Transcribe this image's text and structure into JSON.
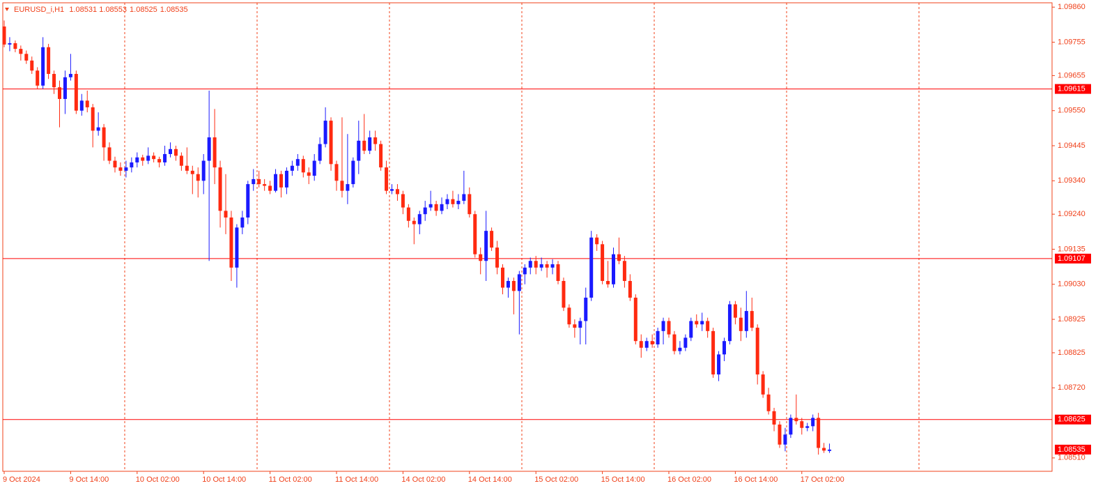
{
  "chart_data": {
    "type": "candlestick",
    "title": "EURUSD_i,H1",
    "up_color": "#1a1aff",
    "down_color": "#ff2a10",
    "axis_color": "#f0401a",
    "ylim": [
      1.0847,
      1.09873
    ],
    "yticks": [
      {
        "value": 1.0986,
        "label": "1.09860"
      },
      1.09755,
      1.09655,
      {
        "value": 1.0955,
        "label": "1.09550"
      },
      1.09445,
      {
        "value": 1.0934,
        "label": "1.09340"
      },
      {
        "value": 1.0924,
        "label": "1.09240"
      },
      1.09135,
      {
        "value": 1.0903,
        "label": "1.09030"
      },
      1.08925,
      1.08825,
      {
        "value": 1.0872,
        "label": "1.08720"
      },
      {
        "value": 1.0851,
        "label": "1.08510"
      }
    ],
    "hlines": [
      1.09615,
      1.09107,
      1.08625
    ],
    "categories": [
      "9 Oct 2024",
      null,
      null,
      null,
      null,
      null,
      null,
      null,
      null,
      null,
      null,
      null,
      "9 Oct 14:00",
      null,
      null,
      null,
      null,
      null,
      null,
      null,
      null,
      null,
      null,
      null,
      "10 Oct 02:00",
      null,
      null,
      null,
      null,
      null,
      null,
      null,
      null,
      null,
      null,
      null,
      "10 Oct 14:00",
      null,
      null,
      null,
      null,
      null,
      null,
      null,
      null,
      null,
      null,
      null,
      "11 Oct 02:00",
      null,
      null,
      null,
      null,
      null,
      null,
      null,
      null,
      null,
      null,
      null,
      "11 Oct 14:00",
      null,
      null,
      null,
      null,
      null,
      null,
      null,
      null,
      null,
      null,
      null,
      "14 Oct 02:00",
      null,
      null,
      null,
      null,
      null,
      null,
      null,
      null,
      null,
      null,
      null,
      "14 Oct 14:00",
      null,
      null,
      null,
      null,
      null,
      null,
      null,
      null,
      null,
      null,
      null,
      "15 Oct 02:00",
      null,
      null,
      null,
      null,
      null,
      null,
      null,
      null,
      null,
      null,
      null,
      "15 Oct 14:00",
      null,
      null,
      null,
      null,
      null,
      null,
      null,
      null,
      null,
      null,
      null,
      "16 Oct 02:00",
      null,
      null,
      null,
      null,
      null,
      null,
      null,
      null,
      null,
      null,
      null,
      "16 Oct 14:00",
      null,
      null,
      null,
      null,
      null,
      null,
      null,
      null,
      null,
      null,
      null,
      "17 Oct 02:00",
      null,
      null,
      null,
      null,
      null
    ],
    "ohlc": [
      [
        1.09802,
        1.0982,
        1.0974,
        1.09748
      ],
      [
        1.09748,
        1.0977,
        1.09728,
        1.09752
      ],
      [
        1.09752,
        1.0976,
        1.09725,
        1.09735
      ],
      [
        1.09735,
        1.09745,
        1.097,
        1.0972
      ],
      [
        1.0972,
        1.0973,
        1.0969,
        1.097
      ],
      [
        1.097,
        1.09712,
        1.0966,
        1.0967
      ],
      [
        1.0967,
        1.0968,
        1.09615,
        1.09625
      ],
      [
        1.09625,
        1.0977,
        1.09615,
        1.0974
      ],
      [
        1.0974,
        1.0975,
        1.09645,
        1.0966
      ],
      [
        1.0966,
        1.0967,
        1.096,
        1.0962
      ],
      [
        1.0962,
        1.0964,
        1.095,
        1.09585
      ],
      [
        1.09585,
        1.0967,
        1.0954,
        1.0965
      ],
      [
        1.0965,
        1.0972,
        1.0964,
        1.0966
      ],
      [
        1.0966,
        1.0967,
        1.0954,
        1.0955
      ],
      [
        1.0955,
        1.096,
        1.09535,
        1.0958
      ],
      [
        1.0958,
        1.0961,
        1.09545,
        1.0956
      ],
      [
        1.0956,
        1.0957,
        1.0944,
        1.0949
      ],
      [
        1.0949,
        1.09545,
        1.09475,
        1.095
      ],
      [
        1.095,
        1.0951,
        1.094,
        1.0944
      ],
      [
        1.0944,
        1.09455,
        1.0939,
        1.094
      ],
      [
        1.094,
        1.09412,
        1.09365,
        1.0938
      ],
      [
        1.0938,
        1.09395,
        1.09355,
        1.0937
      ],
      [
        1.0937,
        1.094,
        1.0935,
        1.0938
      ],
      [
        1.0938,
        1.0941,
        1.09365,
        1.09395
      ],
      [
        1.09395,
        1.09425,
        1.0938,
        1.0941
      ],
      [
        1.0941,
        1.09418,
        1.09385,
        1.094
      ],
      [
        1.094,
        1.0944,
        1.0939,
        1.09415
      ],
      [
        1.09415,
        1.09425,
        1.09395,
        1.09405
      ],
      [
        1.09405,
        1.09412,
        1.0938,
        1.09395
      ],
      [
        1.09395,
        1.09445,
        1.09385,
        1.0942
      ],
      [
        1.0942,
        1.09455,
        1.0941,
        1.09435
      ],
      [
        1.09435,
        1.09445,
        1.094,
        1.09415
      ],
      [
        1.09415,
        1.09425,
        1.0937,
        1.09385
      ],
      [
        1.09385,
        1.0944,
        1.0936,
        1.0937
      ],
      [
        1.0937,
        1.09385,
        1.093,
        1.0936
      ],
      [
        1.0936,
        1.0938,
        1.0929,
        1.0934
      ],
      [
        1.0934,
        1.0942,
        1.093,
        1.094
      ],
      [
        1.094,
        1.0961,
        1.091,
        1.0947
      ],
      [
        1.0947,
        1.09555,
        1.0933,
        1.0938
      ],
      [
        1.0938,
        1.094,
        1.092,
        1.0925
      ],
      [
        1.0925,
        1.0936,
        1.0918,
        1.0923
      ],
      [
        1.0923,
        1.0925,
        1.0904,
        1.0908
      ],
      [
        1.0908,
        1.0921,
        1.0902,
        1.092
      ],
      [
        1.092,
        1.0925,
        1.0918,
        1.0923
      ],
      [
        1.0923,
        1.0934,
        1.0921,
        1.0933
      ],
      [
        1.0933,
        1.09375,
        1.0931,
        1.09345
      ],
      [
        1.09345,
        1.0937,
        1.0932,
        1.0933
      ],
      [
        1.0933,
        1.09345,
        1.0931,
        1.09325
      ],
      [
        1.09325,
        1.0934,
        1.093,
        1.0931
      ],
      [
        1.0931,
        1.09375,
        1.09305,
        1.0936
      ],
      [
        1.0936,
        1.0937,
        1.0929,
        1.0932
      ],
      [
        1.0932,
        1.0938,
        1.093,
        1.0937
      ],
      [
        1.0937,
        1.094,
        1.09355,
        1.09385
      ],
      [
        1.09385,
        1.0942,
        1.0937,
        1.09405
      ],
      [
        1.09405,
        1.09415,
        1.0935,
        1.09365
      ],
      [
        1.09365,
        1.0938,
        1.0933,
        1.09355
      ],
      [
        1.09355,
        1.0942,
        1.0934,
        1.094
      ],
      [
        1.094,
        1.0947,
        1.0939,
        1.0945
      ],
      [
        1.0945,
        1.0956,
        1.0944,
        1.0952
      ],
      [
        1.0952,
        1.0953,
        1.0937,
        1.0939
      ],
      [
        1.0939,
        1.094,
        1.0931,
        1.0934
      ],
      [
        1.0934,
        1.0953,
        1.0929,
        1.0931
      ],
      [
        1.0931,
        1.0948,
        1.0927,
        1.0933
      ],
      [
        1.0933,
        1.0941,
        1.0932,
        1.094
      ],
      [
        1.094,
        1.0952,
        1.0936,
        1.0946
      ],
      [
        1.0946,
        1.0954,
        1.0942,
        1.0943
      ],
      [
        1.0943,
        1.0949,
        1.0942,
        1.0947
      ],
      [
        1.0947,
        1.0949,
        1.0943,
        1.0945
      ],
      [
        1.0945,
        1.0946,
        1.0937,
        1.0938
      ],
      [
        1.0938,
        1.094,
        1.093,
        1.0931
      ],
      [
        1.0931,
        1.0933,
        1.093,
        1.09315
      ],
      [
        1.09315,
        1.0933,
        1.0928,
        1.093
      ],
      [
        1.093,
        1.0931,
        1.0924,
        1.0926
      ],
      [
        1.0926,
        1.0927,
        1.092,
        1.0922
      ],
      [
        1.0922,
        1.0923,
        1.0915,
        1.0921
      ],
      [
        1.0921,
        1.0925,
        1.0918,
        1.0924
      ],
      [
        1.0924,
        1.0928,
        1.0922,
        1.0926
      ],
      [
        1.0926,
        1.0931,
        1.0925,
        1.0927
      ],
      [
        1.0927,
        1.0928,
        1.09235,
        1.0925
      ],
      [
        1.0925,
        1.0929,
        1.0924,
        1.0927
      ],
      [
        1.0927,
        1.093,
        1.09255,
        1.09285
      ],
      [
        1.09285,
        1.0931,
        1.0926,
        1.0927
      ],
      [
        1.0927,
        1.093,
        1.09255,
        1.0928
      ],
      [
        1.0928,
        1.0937,
        1.0927,
        1.093
      ],
      [
        1.093,
        1.0932,
        1.0923,
        1.0924
      ],
      [
        1.0924,
        1.0925,
        1.0911,
        1.0912
      ],
      [
        1.0912,
        1.0914,
        1.0906,
        1.091
      ],
      [
        1.091,
        1.0925,
        1.0904,
        1.0919
      ],
      [
        1.0919,
        1.092,
        1.0913,
        1.0914
      ],
      [
        1.0914,
        1.0916,
        1.0906,
        1.0908
      ],
      [
        1.0908,
        1.0909,
        1.09,
        1.0902
      ],
      [
        1.0902,
        1.0905,
        1.0899,
        1.0904
      ],
      [
        1.0904,
        1.0905,
        1.0894,
        1.0901
      ],
      [
        1.0901,
        1.0907,
        1.0888,
        1.0906
      ],
      [
        1.0906,
        1.0909,
        1.0903,
        1.0908
      ],
      [
        1.0908,
        1.0911,
        1.0906,
        1.091
      ],
      [
        1.091,
        1.09115,
        1.0906,
        1.0908
      ],
      [
        1.0908,
        1.0911,
        1.0907,
        1.0909
      ],
      [
        1.0909,
        1.091,
        1.0905,
        1.0908
      ],
      [
        1.0908,
        1.09105,
        1.0906,
        1.0909
      ],
      [
        1.0909,
        1.091,
        1.0903,
        1.0904
      ],
      [
        1.0904,
        1.0905,
        1.0895,
        1.0896
      ],
      [
        1.0896,
        1.0897,
        1.089,
        1.0891
      ],
      [
        1.0891,
        1.08925,
        1.0887,
        1.089
      ],
      [
        1.089,
        1.0893,
        1.0885,
        1.0892
      ],
      [
        1.0892,
        1.0902,
        1.0885,
        1.0899
      ],
      [
        1.0899,
        1.0919,
        1.0898,
        1.0917
      ],
      [
        1.0917,
        1.0918,
        1.0913,
        1.0915
      ],
      [
        1.0915,
        1.0916,
        1.0903,
        1.0904
      ],
      [
        1.0904,
        1.091,
        1.0902,
        1.0903
      ],
      [
        1.0903,
        1.0914,
        1.0902,
        1.0912
      ],
      [
        1.0912,
        1.0917,
        1.0909,
        1.091
      ],
      [
        1.091,
        1.09115,
        1.0902,
        1.0904
      ],
      [
        1.0904,
        1.0906,
        1.0898,
        1.0899
      ],
      [
        1.0899,
        1.09,
        1.0885,
        1.0886
      ],
      [
        1.0886,
        1.0888,
        1.0881,
        1.0884
      ],
      [
        1.0884,
        1.0887,
        1.0883,
        1.0886
      ],
      [
        1.0886,
        1.0888,
        1.0884,
        1.0885
      ],
      [
        1.0885,
        1.089,
        1.0884,
        1.0889
      ],
      [
        1.0889,
        1.0893,
        1.0885,
        1.0892
      ],
      [
        1.0892,
        1.0893,
        1.0887,
        1.0888
      ],
      [
        1.0888,
        1.0889,
        1.0882,
        1.0883
      ],
      [
        1.0883,
        1.0886,
        1.0882,
        1.0884
      ],
      [
        1.0884,
        1.0888,
        1.0883,
        1.0887
      ],
      [
        1.0887,
        1.0893,
        1.0886,
        1.0892
      ],
      [
        1.0892,
        1.0894,
        1.089,
        1.0891
      ],
      [
        1.0891,
        1.08945,
        1.0889,
        1.0892
      ],
      [
        1.0892,
        1.0893,
        1.0887,
        1.0889
      ],
      [
        1.0889,
        1.089,
        1.0875,
        1.0876
      ],
      [
        1.0876,
        1.0883,
        1.0874,
        1.0882
      ],
      [
        1.0882,
        1.0887,
        1.088,
        1.0886
      ],
      [
        1.0886,
        1.0898,
        1.0885,
        1.0897
      ],
      [
        1.0897,
        1.0898,
        1.0891,
        1.0893
      ],
      [
        1.0893,
        1.0896,
        1.0886,
        1.0889
      ],
      [
        1.0889,
        1.0901,
        1.0887,
        1.0895
      ],
      [
        1.0895,
        1.0899,
        1.0889,
        1.089
      ],
      [
        1.089,
        1.0891,
        1.0873,
        1.0876
      ],
      [
        1.0876,
        1.0877,
        1.0869,
        1.087
      ],
      [
        1.087,
        1.0872,
        1.0864,
        1.0865
      ],
      [
        1.0865,
        1.0866,
        1.0859,
        1.0861
      ],
      [
        1.0861,
        1.0862,
        1.0854,
        1.0855
      ],
      [
        1.0855,
        1.086,
        1.0853,
        1.0858
      ],
      [
        1.0858,
        1.0864,
        1.0857,
        1.0863
      ],
      [
        1.0863,
        1.087,
        1.0861,
        1.0862
      ],
      [
        1.0862,
        1.0863,
        1.0858,
        1.086
      ],
      [
        1.086,
        1.08615,
        1.0859,
        1.08605
      ],
      [
        1.08605,
        1.0864,
        1.0859,
        1.0863
      ],
      [
        1.0863,
        1.08645,
        1.0852,
        1.0854
      ],
      [
        1.0854,
        1.08555,
        1.08525,
        1.08532
      ],
      [
        1.08531,
        1.08553,
        1.08525,
        1.08535
      ]
    ]
  }
}
